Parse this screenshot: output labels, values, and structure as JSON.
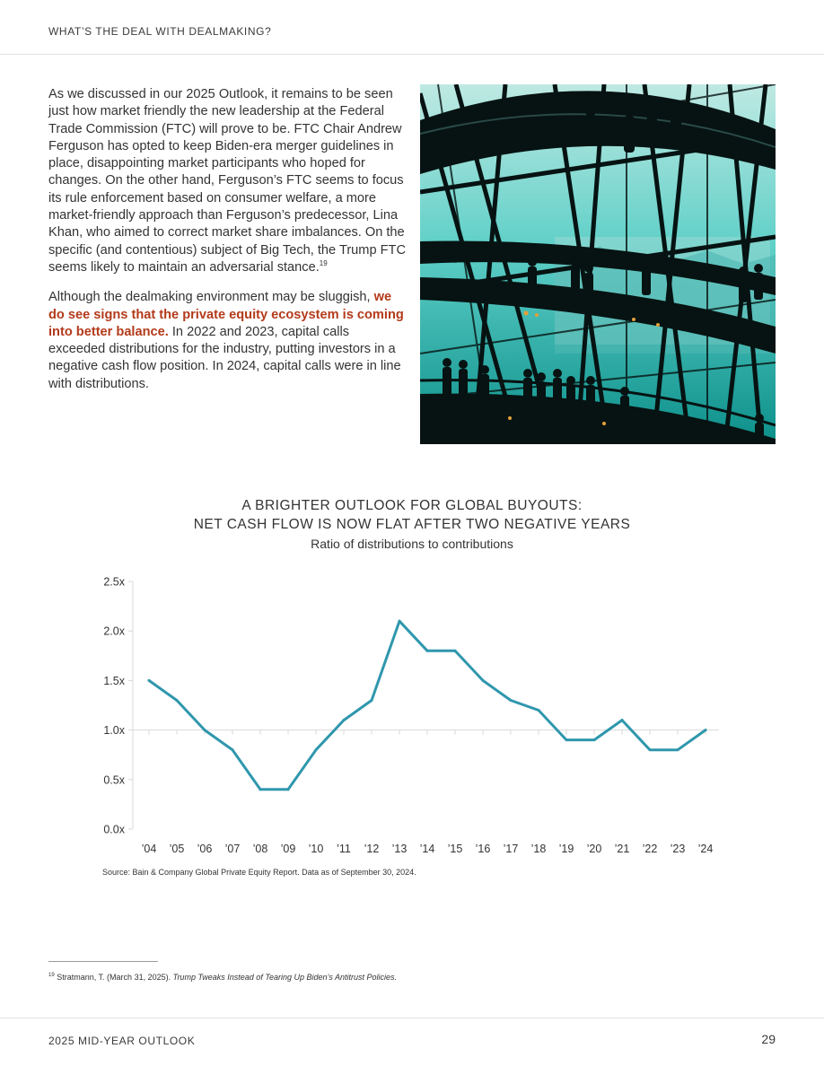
{
  "header": {
    "running_title": "WHAT’S THE DEAL WITH DEALMAKING?"
  },
  "article": {
    "p1_text": "As we discussed in our 2025 Outlook, it remains to be seen just how market friendly the new leadership at the Federal Trade Commission (FTC) will prove to be. FTC Chair Andrew Ferguson has opted to keep Biden-era merger guidelines in place, disappointing market participants who hoped for changes. On the other hand, Ferguson’s FTC seems to focus its rule enforcement based on consumer welfare, a more market-friendly approach than Ferguson’s predecessor, Lina Khan, who aimed to correct market share imbalances. On the specific (and contentious) subject of Big Tech, the Trump FTC seems likely to maintain an adversarial stance.",
    "p1_footnote_ref": "19",
    "p2_lead": "Although the dealmaking environment may be sluggish, ",
    "p2_highlight": "we do see signs that the private equity ecosystem is coming into better balance.",
    "p2_rest": " In 2022 and 2023, capital calls exceeded distributions for the industry, putting investors in a negative cash flow position. In 2024, capital calls were in line with distributions."
  },
  "photo": {
    "colors": {
      "glass": "#10a3a0",
      "glass_light": "#5fd0c8",
      "frame": "#061312"
    }
  },
  "chart_data": {
    "type": "line",
    "title_line1": "A BRIGHTER OUTLOOK FOR GLOBAL BUYOUTS:",
    "title_line2": "NET CASH FLOW IS NOW FLAT AFTER TWO NEGATIVE YEARS",
    "subtitle": "Ratio of distributions to contributions",
    "xlabel": "",
    "ylabel": "",
    "categories": [
      "’04",
      "’05",
      "’06",
      "’07",
      "’08",
      "’09",
      "’10",
      "’11",
      "’12",
      "’13",
      "’14",
      "’15",
      "’16",
      "’17",
      "’18",
      "’19",
      "’20",
      "’21",
      "’22",
      "’23",
      "’24"
    ],
    "series": [
      {
        "values": [
          1.5,
          1.3,
          1.0,
          0.8,
          0.4,
          0.4,
          0.8,
          1.1,
          1.3,
          2.1,
          1.8,
          1.8,
          1.5,
          1.3,
          1.2,
          0.9,
          0.9,
          1.1,
          0.8,
          0.8,
          1.0
        ]
      }
    ],
    "ylim": [
      0,
      2.5
    ],
    "yticks": [
      0,
      0.5,
      1.0,
      1.5,
      2.0,
      2.5
    ],
    "ytick_labels": [
      "0.0x",
      "0.5x",
      "1.0x",
      "1.5x",
      "2.0x",
      "2.5x"
    ],
    "reference_line": 1.0,
    "grid": false,
    "line_color": "#2f97ad",
    "source": "Source: Bain & Company Global Private Equity Report. Data as of September 30, 2024."
  },
  "footnote": {
    "number": "19",
    "text": "Stratmann, T. (March 31, 2025). ",
    "title": "Trump Tweaks Instead of Tearing Up Biden’s Antitrust Policies."
  },
  "footer": {
    "left": "2025 MID-YEAR OUTLOOK",
    "page_number": "29"
  }
}
